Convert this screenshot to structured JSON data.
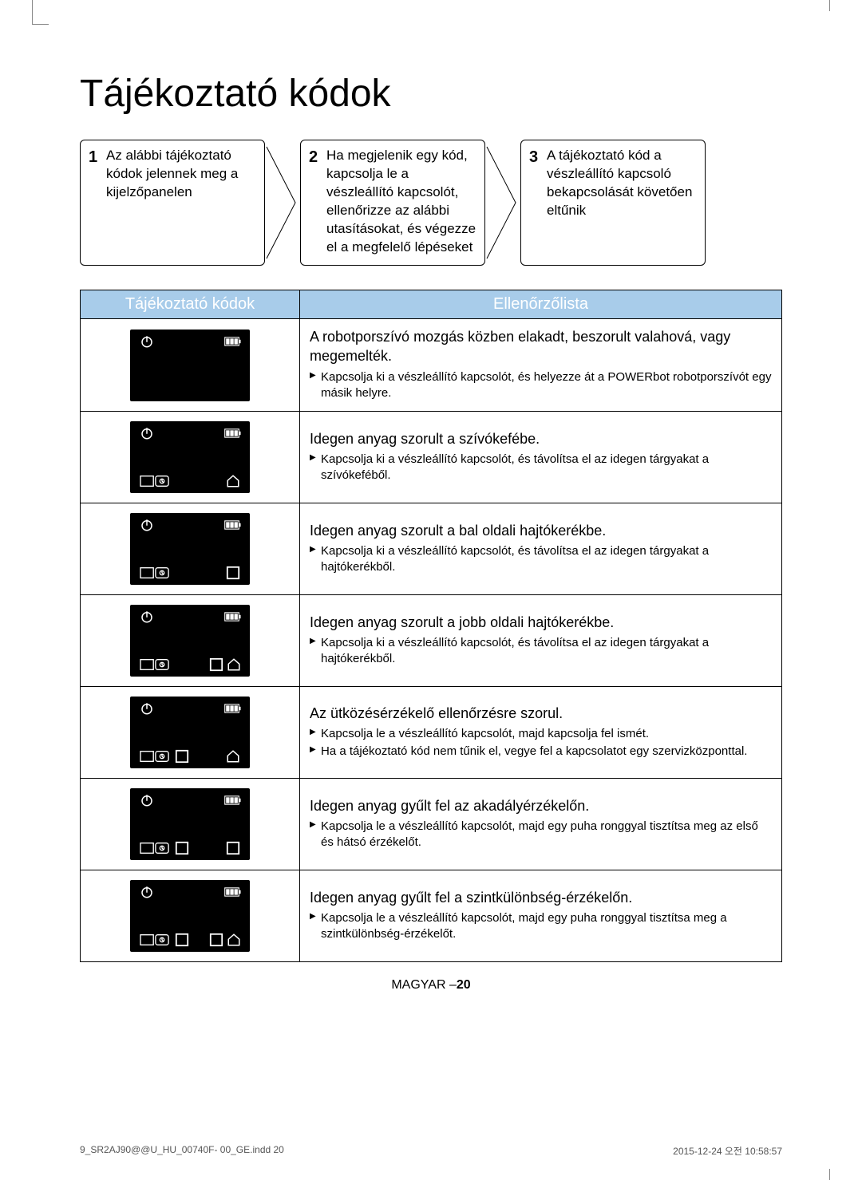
{
  "title": "Tájékoztató kódok",
  "steps": [
    {
      "num": "1",
      "text": "Az alábbi tájékoztató kódok jelennek meg a kijelzőpanelen"
    },
    {
      "num": "2",
      "text": "Ha megjelenik egy kód, kapcsolja le a vészleállító kapcsolót, ellenőrizze az alábbi utasításokat, és végezze el a megfelelő lépéseket"
    },
    {
      "num": "3",
      "text": "A tájékoztató kód a vészleállító kapcsoló bekapcsolását követően eltűnik"
    }
  ],
  "table": {
    "head_codes": "Tájékoztató kódok",
    "head_check": "Ellenőrzőlista",
    "rows": [
      {
        "panel": {
          "power": true,
          "battery": true,
          "bl": false,
          "bm": false,
          "br_home": false,
          "br_sq": false
        },
        "title": "A robotporszívó mozgás közben elakadt, beszorult valahová, vagy megemelték.",
        "items": [
          "Kapcsolja ki a vészleállító kapcsolót, és helyezze át a POWERbot robotporszívót egy másik helyre."
        ]
      },
      {
        "panel": {
          "power": true,
          "battery": true,
          "bl": true,
          "bm": false,
          "br_home": true,
          "br_sq": false
        },
        "title": "Idegen anyag szorult a szívókefébe.",
        "items": [
          "Kapcsolja ki a vészleállító kapcsolót, és távolítsa el az idegen tárgyakat a szívókeféből."
        ]
      },
      {
        "panel": {
          "power": true,
          "battery": true,
          "bl": true,
          "bm": false,
          "br_home": false,
          "br_sq": true
        },
        "title": "Idegen anyag szorult a bal oldali hajtókerékbe.",
        "items": [
          "Kapcsolja ki a vészleállító kapcsolót, és távolítsa el az idegen tárgyakat a hajtókerékből."
        ]
      },
      {
        "panel": {
          "power": true,
          "battery": true,
          "bl": true,
          "bm": false,
          "br_home": true,
          "br_sq": true
        },
        "title": "Idegen anyag szorult a jobb oldali hajtókerékbe.",
        "items": [
          "Kapcsolja ki a vészleállító kapcsolót, és távolítsa el az idegen tárgyakat a hajtókerékből."
        ]
      },
      {
        "panel": {
          "power": true,
          "battery": true,
          "bl": true,
          "bm": true,
          "br_home": true,
          "br_sq": false
        },
        "title": "Az ütközésérzékelő ellenőrzésre szorul.",
        "items": [
          "Kapcsolja le a vészleállító kapcsolót, majd kapcsolja fel ismét.",
          "Ha a tájékoztató kód nem tűnik el, vegye fel a kapcsolatot egy szervizközponttal."
        ]
      },
      {
        "panel": {
          "power": true,
          "battery": true,
          "bl": true,
          "bm": true,
          "br_home": false,
          "br_sq": true
        },
        "title": "Idegen anyag gyűlt fel az akadályérzékelőn.",
        "items": [
          "Kapcsolja le a vészleállító kapcsolót, majd egy puha ronggyal tisztítsa meg az első és hátsó érzékelőt."
        ]
      },
      {
        "panel": {
          "power": true,
          "battery": true,
          "bl": true,
          "bm": true,
          "br_home": true,
          "br_sq": true
        },
        "title": "Idegen anyag gyűlt fel a szintkülönbség-érzékelőn.",
        "items": [
          "Kapcsolja le a vészleállító kapcsolót, majd egy puha ronggyal tisztítsa meg a szintkülönbség-érzékelőt."
        ]
      }
    ]
  },
  "footer_center_prefix": "MAGYAR –",
  "footer_center_page": "20",
  "footer_left": "9_SR2AJ90@@U_HU_00740F- 00_GE.indd   20",
  "footer_right": "2015-12-24   오전 10:58:57",
  "colors": {
    "header_bg": "#a8ccea",
    "header_fg": "#ffffff",
    "panel_bg": "#000000",
    "panel_fg": "#ffffff"
  },
  "icons": {
    "power": "power-icon",
    "battery": "battery-icon",
    "dustbin": "dustbin-icon",
    "square": "square-icon",
    "home": "home-icon"
  }
}
